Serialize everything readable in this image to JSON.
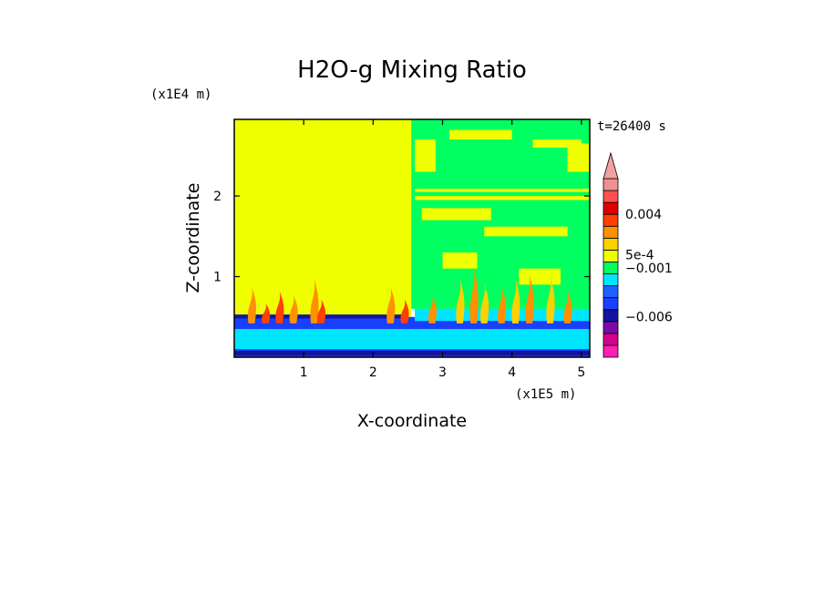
{
  "chart_data": {
    "type": "heatmap",
    "title": "H2O-g Mixing Ratio",
    "time_label": "t=26400 s",
    "xlabel": "X-coordinate",
    "ylabel": "Z-coordinate",
    "x_scale_label": "(x1E5 m)",
    "y_scale_label": "(x1E4 m)",
    "xlim": [
      0,
      5.12
    ],
    "ylim": [
      0,
      2.95
    ],
    "x_ticks": [
      {
        "value": 1,
        "label": "1"
      },
      {
        "value": 2,
        "label": "2"
      },
      {
        "value": 3,
        "label": "3"
      },
      {
        "value": 4,
        "label": "4"
      },
      {
        "value": 5,
        "label": "5"
      }
    ],
    "y_ticks": [
      {
        "value": 1,
        "label": "1"
      },
      {
        "value": 2,
        "label": "2"
      }
    ],
    "colorbar": {
      "levels": [
        "#ff1fb0",
        "#d40090",
        "#7d0aa8",
        "#1414a0",
        "#1a40ff",
        "#2060ff",
        "#00e5ff",
        "#00ff60",
        "#efff00",
        "#ffd000",
        "#ff9000",
        "#ff4000",
        "#e00000",
        "#ff5050",
        "#f09090"
      ],
      "extend_top_color": "#f4a0a0",
      "labels": [
        {
          "level": 12,
          "text": "0.004"
        },
        {
          "level": 8.6,
          "text": "5e-4"
        },
        {
          "level": 7.5,
          "text": "−0.001"
        },
        {
          "level": 3.4,
          "text": "−0.006"
        }
      ]
    },
    "regions": [
      {
        "color": "#efff00",
        "x": [
          0,
          2.55
        ],
        "z": [
          0.5,
          2.95
        ]
      },
      {
        "color": "#00ff60",
        "x": [
          2.55,
          5.12
        ],
        "z": [
          0.6,
          2.95
        ]
      },
      {
        "color": "#1a40ff",
        "x": [
          0,
          5.12
        ],
        "z": [
          0,
          0.5
        ]
      },
      {
        "color": "#00e5ff",
        "x": [
          0,
          5.12
        ],
        "z": [
          0.1,
          0.35
        ]
      }
    ],
    "plumes": [
      {
        "x": 0.25,
        "h": 0.45,
        "c": "#ff9000"
      },
      {
        "x": 0.45,
        "h": 0.25,
        "c": "#ff4000"
      },
      {
        "x": 0.65,
        "h": 0.4,
        "c": "#ff4000"
      },
      {
        "x": 0.85,
        "h": 0.35,
        "c": "#ff9000"
      },
      {
        "x": 1.15,
        "h": 0.55,
        "c": "#ff9000"
      },
      {
        "x": 1.25,
        "h": 0.3,
        "c": "#ff4000"
      },
      {
        "x": 2.25,
        "h": 0.45,
        "c": "#ff9000"
      },
      {
        "x": 2.45,
        "h": 0.3,
        "c": "#ff4000"
      },
      {
        "x": 2.85,
        "h": 0.35,
        "c": "#ff9000"
      },
      {
        "x": 3.25,
        "h": 0.55,
        "c": "#ffd000"
      },
      {
        "x": 3.45,
        "h": 0.7,
        "c": "#ff9000"
      },
      {
        "x": 3.6,
        "h": 0.5,
        "c": "#ffd000"
      },
      {
        "x": 3.85,
        "h": 0.45,
        "c": "#ff9000"
      },
      {
        "x": 4.05,
        "h": 0.55,
        "c": "#ffd000"
      },
      {
        "x": 4.25,
        "h": 0.6,
        "c": "#ff9000"
      },
      {
        "x": 4.55,
        "h": 0.6,
        "c": "#ffd000"
      },
      {
        "x": 4.8,
        "h": 0.4,
        "c": "#ff9000"
      }
    ]
  }
}
